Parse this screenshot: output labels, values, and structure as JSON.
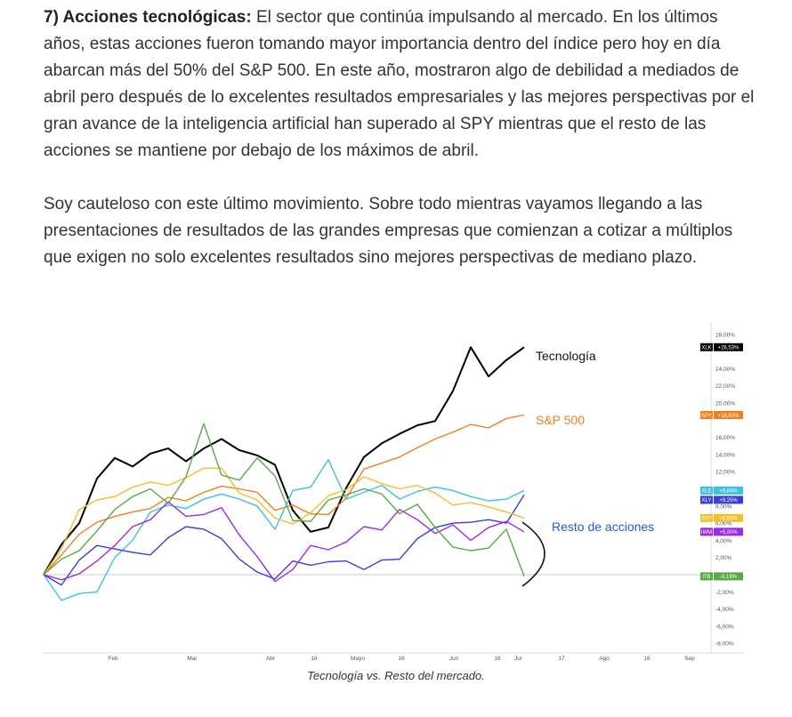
{
  "article": {
    "p1_heading": "7) Acciones tecnológicas:",
    "p1_text": " El sector que continúa impulsando al mercado. En los últimos años, estas acciones fueron tomando mayor importancia dentro del índice pero hoy en día abarcan más del 50% del S&P 500. En este año, mostraron algo de debilidad a mediados de abril pero después de lo excelentes resultados empresariales y las mejores perspectivas por el gran avance de la inteligencia artificial han superado al SPY mientras que el resto de las acciones se mantiene por debajo de los máximos de abril.",
    "p2_text": "Soy cauteloso con este último movimiento. Sobre todo mientras vayamos llegando a las presentaciones de resultados de las grandes empresas que comienzan a cotizar a múltiplos que exigen no solo excelentes resultados sino mejores perspectivas de mediano plazo."
  },
  "caption": "Tecnología vs. Resto del mercado.",
  "chart_data": {
    "type": "line",
    "x_ticks": [
      "Feb",
      "Mar",
      "Abr",
      "16",
      "Mayo",
      "16",
      "Jun",
      "16",
      "Jul",
      "17",
      "Ago",
      "16",
      "Sep"
    ],
    "y_ticks": [
      "28,00%",
      "24,00%",
      "22,00%",
      "20,00%",
      "16,00%",
      "14,00%",
      "12,00%",
      "8,00%",
      "6,00%",
      "4,00%",
      "2,00%",
      "-2,00%",
      "-4,00%",
      "-6,00%",
      "-8,00%"
    ],
    "ylim": [
      -9,
      29
    ],
    "annotations": [
      "Tecnología",
      "S&P 500",
      "Resto de acciones"
    ],
    "series": [
      {
        "name": "XLK",
        "label": "+26,53%",
        "color": "#000000",
        "values": [
          0.0,
          3.5,
          6.0,
          11.2,
          13.6,
          12.6,
          14.1,
          14.7,
          13.2,
          14.7,
          15.8,
          14.5,
          13.9,
          12.8,
          7.5,
          5.0,
          5.5,
          10.1,
          13.7,
          15.3,
          16.4,
          17.4,
          17.9,
          21.4,
          26.5,
          23.1,
          25.0,
          26.5
        ]
      },
      {
        "name": "SPY",
        "label": "+18,60%",
        "color": "#f07f1d",
        "values": [
          0.0,
          2.3,
          4.7,
          6.1,
          6.8,
          7.3,
          7.7,
          9.0,
          8.6,
          9.6,
          10.3,
          10.0,
          9.6,
          7.5,
          8.1,
          7.1,
          7.0,
          8.9,
          12.3,
          13.0,
          13.7,
          14.8,
          15.8,
          16.6,
          17.5,
          17.1,
          18.2,
          18.6
        ]
      },
      {
        "name": "XLE",
        "label": "+9,84%",
        "color": "#3fc1dc",
        "values": [
          0.0,
          -3.0,
          -2.2,
          -2.0,
          2.0,
          4.0,
          7.3,
          8.1,
          7.7,
          8.8,
          9.4,
          8.8,
          8.0,
          5.3,
          9.8,
          10.2,
          13.4,
          8.8,
          9.6,
          10.4,
          8.8,
          9.7,
          10.2,
          9.8,
          9.1,
          8.6,
          8.8,
          9.8
        ]
      },
      {
        "name": "XLY",
        "label": "+9,25%",
        "color": "#3a3fd3",
        "values": [
          0.0,
          -1.2,
          1.7,
          3.4,
          3.0,
          2.6,
          2.3,
          4.3,
          5.6,
          5.3,
          4.2,
          1.8,
          0.3,
          -0.5,
          1.6,
          1.1,
          1.5,
          1.6,
          0.6,
          1.7,
          1.8,
          4.2,
          5.5,
          6.0,
          6.1,
          6.4,
          6.0,
          9.3
        ]
      },
      {
        "name": "XRT",
        "label": "+6,63%",
        "color": "#f2bf2c",
        "values": [
          0.0,
          3.0,
          7.6,
          8.7,
          9.1,
          10.2,
          10.8,
          10.4,
          11.3,
          12.4,
          12.4,
          9.5,
          8.7,
          6.6,
          5.9,
          7.2,
          9.2,
          9.9,
          11.4,
          10.6,
          10.0,
          10.4,
          9.5,
          8.1,
          8.4,
          7.9,
          7.3,
          6.6
        ]
      },
      {
        "name": "IWM",
        "label": "+5,00%",
        "color": "#9c2be0",
        "values": [
          0.0,
          -0.6,
          0.1,
          1.6,
          3.4,
          5.6,
          6.4,
          8.5,
          6.8,
          7.0,
          7.8,
          4.6,
          2.1,
          -0.8,
          0.6,
          3.4,
          2.9,
          3.8,
          5.6,
          5.2,
          7.6,
          6.4,
          4.8,
          5.8,
          4.0,
          5.5,
          6.2,
          5.0
        ]
      },
      {
        "name": "ITB",
        "label": "-0,19%",
        "color": "#5ba84a",
        "values": [
          0.0,
          1.8,
          2.8,
          5.1,
          7.6,
          9.1,
          10.0,
          8.3,
          11.4,
          17.6,
          11.6,
          11.0,
          13.6,
          11.5,
          6.3,
          6.2,
          8.7,
          9.3,
          10.0,
          9.4,
          7.1,
          8.2,
          5.5,
          3.2,
          2.8,
          3.1,
          5.3,
          -0.2
        ]
      }
    ]
  }
}
